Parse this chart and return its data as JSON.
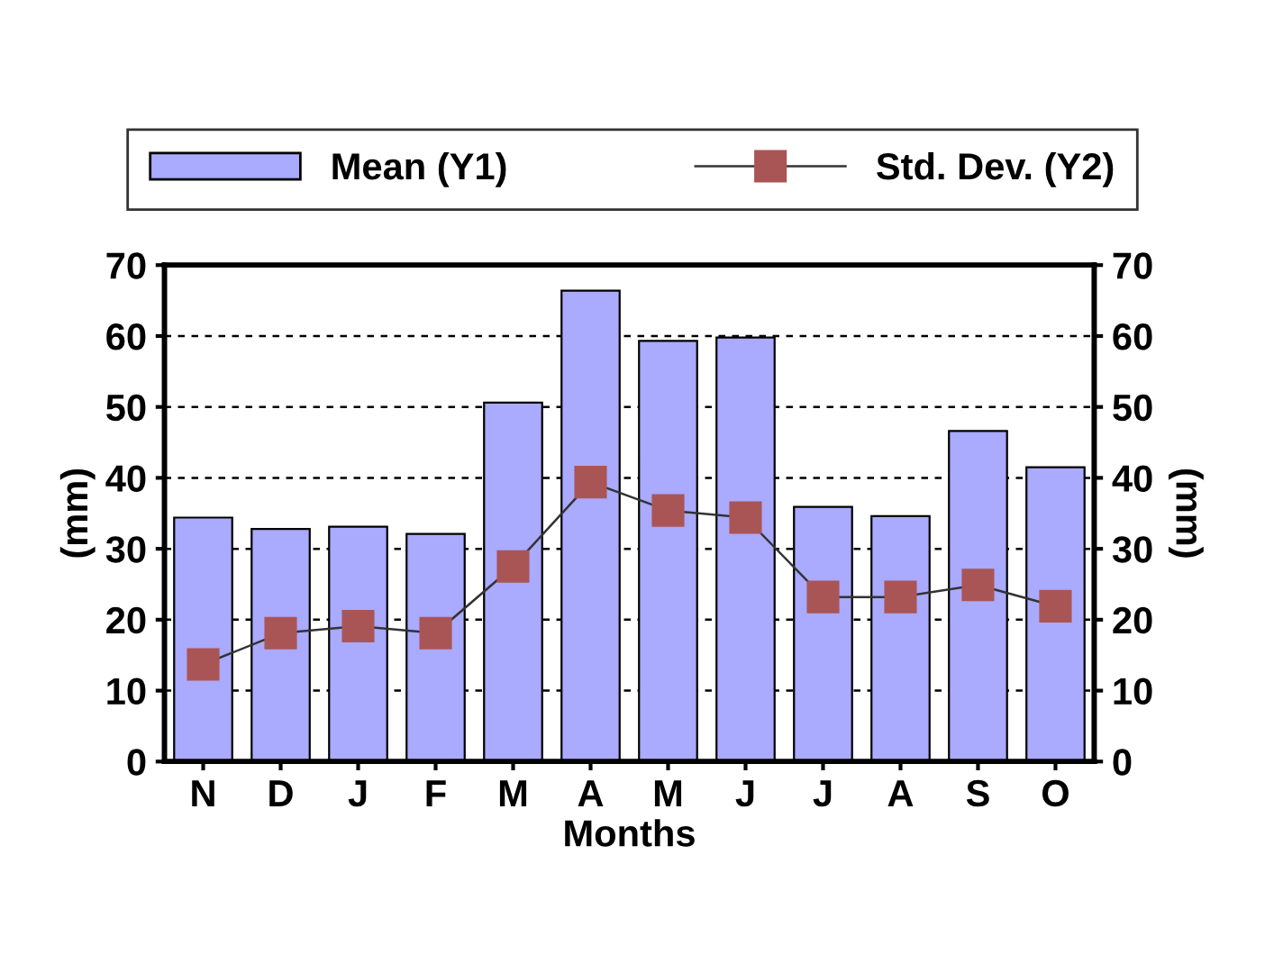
{
  "chart_data": {
    "type": "bar",
    "xlabel": "Months",
    "ylabel": "(mm)",
    "y2label": "(mm)",
    "categories": [
      "N",
      "D",
      "J",
      "F",
      "M",
      "A",
      "M",
      "J",
      "J",
      "A",
      "S",
      "O"
    ],
    "series": [
      {
        "name": "Mean (Y1)",
        "color": "#aaaaff",
        "values": [
          34.4,
          32.8,
          33.1,
          32.1,
          50.6,
          66.4,
          59.3,
          59.8,
          35.9,
          34.6,
          46.6,
          41.5
        ]
      },
      {
        "name": "Std. Dev. (Y2)",
        "type": "line",
        "axis": "y2",
        "color": "#aa5555",
        "marker": "square",
        "values": [
          13.7,
          18.1,
          19.1,
          18.1,
          27.5,
          39.4,
          35.4,
          34.4,
          23.2,
          23.2,
          24.9,
          21.9
        ]
      }
    ],
    "ylim": [
      0,
      70
    ],
    "yticks": [
      0,
      10,
      20,
      30,
      40,
      50,
      60,
      70
    ],
    "y2lim": [
      0,
      70
    ],
    "y2ticks": [
      0,
      10,
      20,
      30,
      40,
      50,
      60,
      70
    ],
    "grid": "y",
    "legend": "top"
  }
}
